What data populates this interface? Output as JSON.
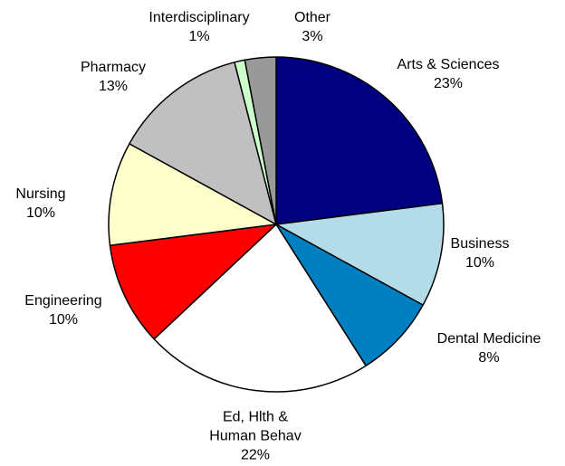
{
  "chart_data": {
    "type": "pie",
    "categories": [
      "Arts & Sciences",
      "Business",
      "Dental Medicine",
      "Ed, Hlth & Human Behav",
      "Engineering",
      "Nursing",
      "Pharmacy",
      "Interdisciplinary",
      "Other"
    ],
    "values": [
      23,
      10,
      8,
      22,
      10,
      10,
      13,
      1,
      3
    ],
    "value_labels": [
      "23%",
      "10%",
      "8%",
      "22%",
      "10%",
      "10%",
      "13%",
      "1%",
      "3%"
    ],
    "colors": [
      "#000080",
      "#b4dce8",
      "#0080c0",
      "#ffffff",
      "#ff0000",
      "#ffffcc",
      "#c0c0c0",
      "#ccffcc",
      "#999999"
    ]
  }
}
